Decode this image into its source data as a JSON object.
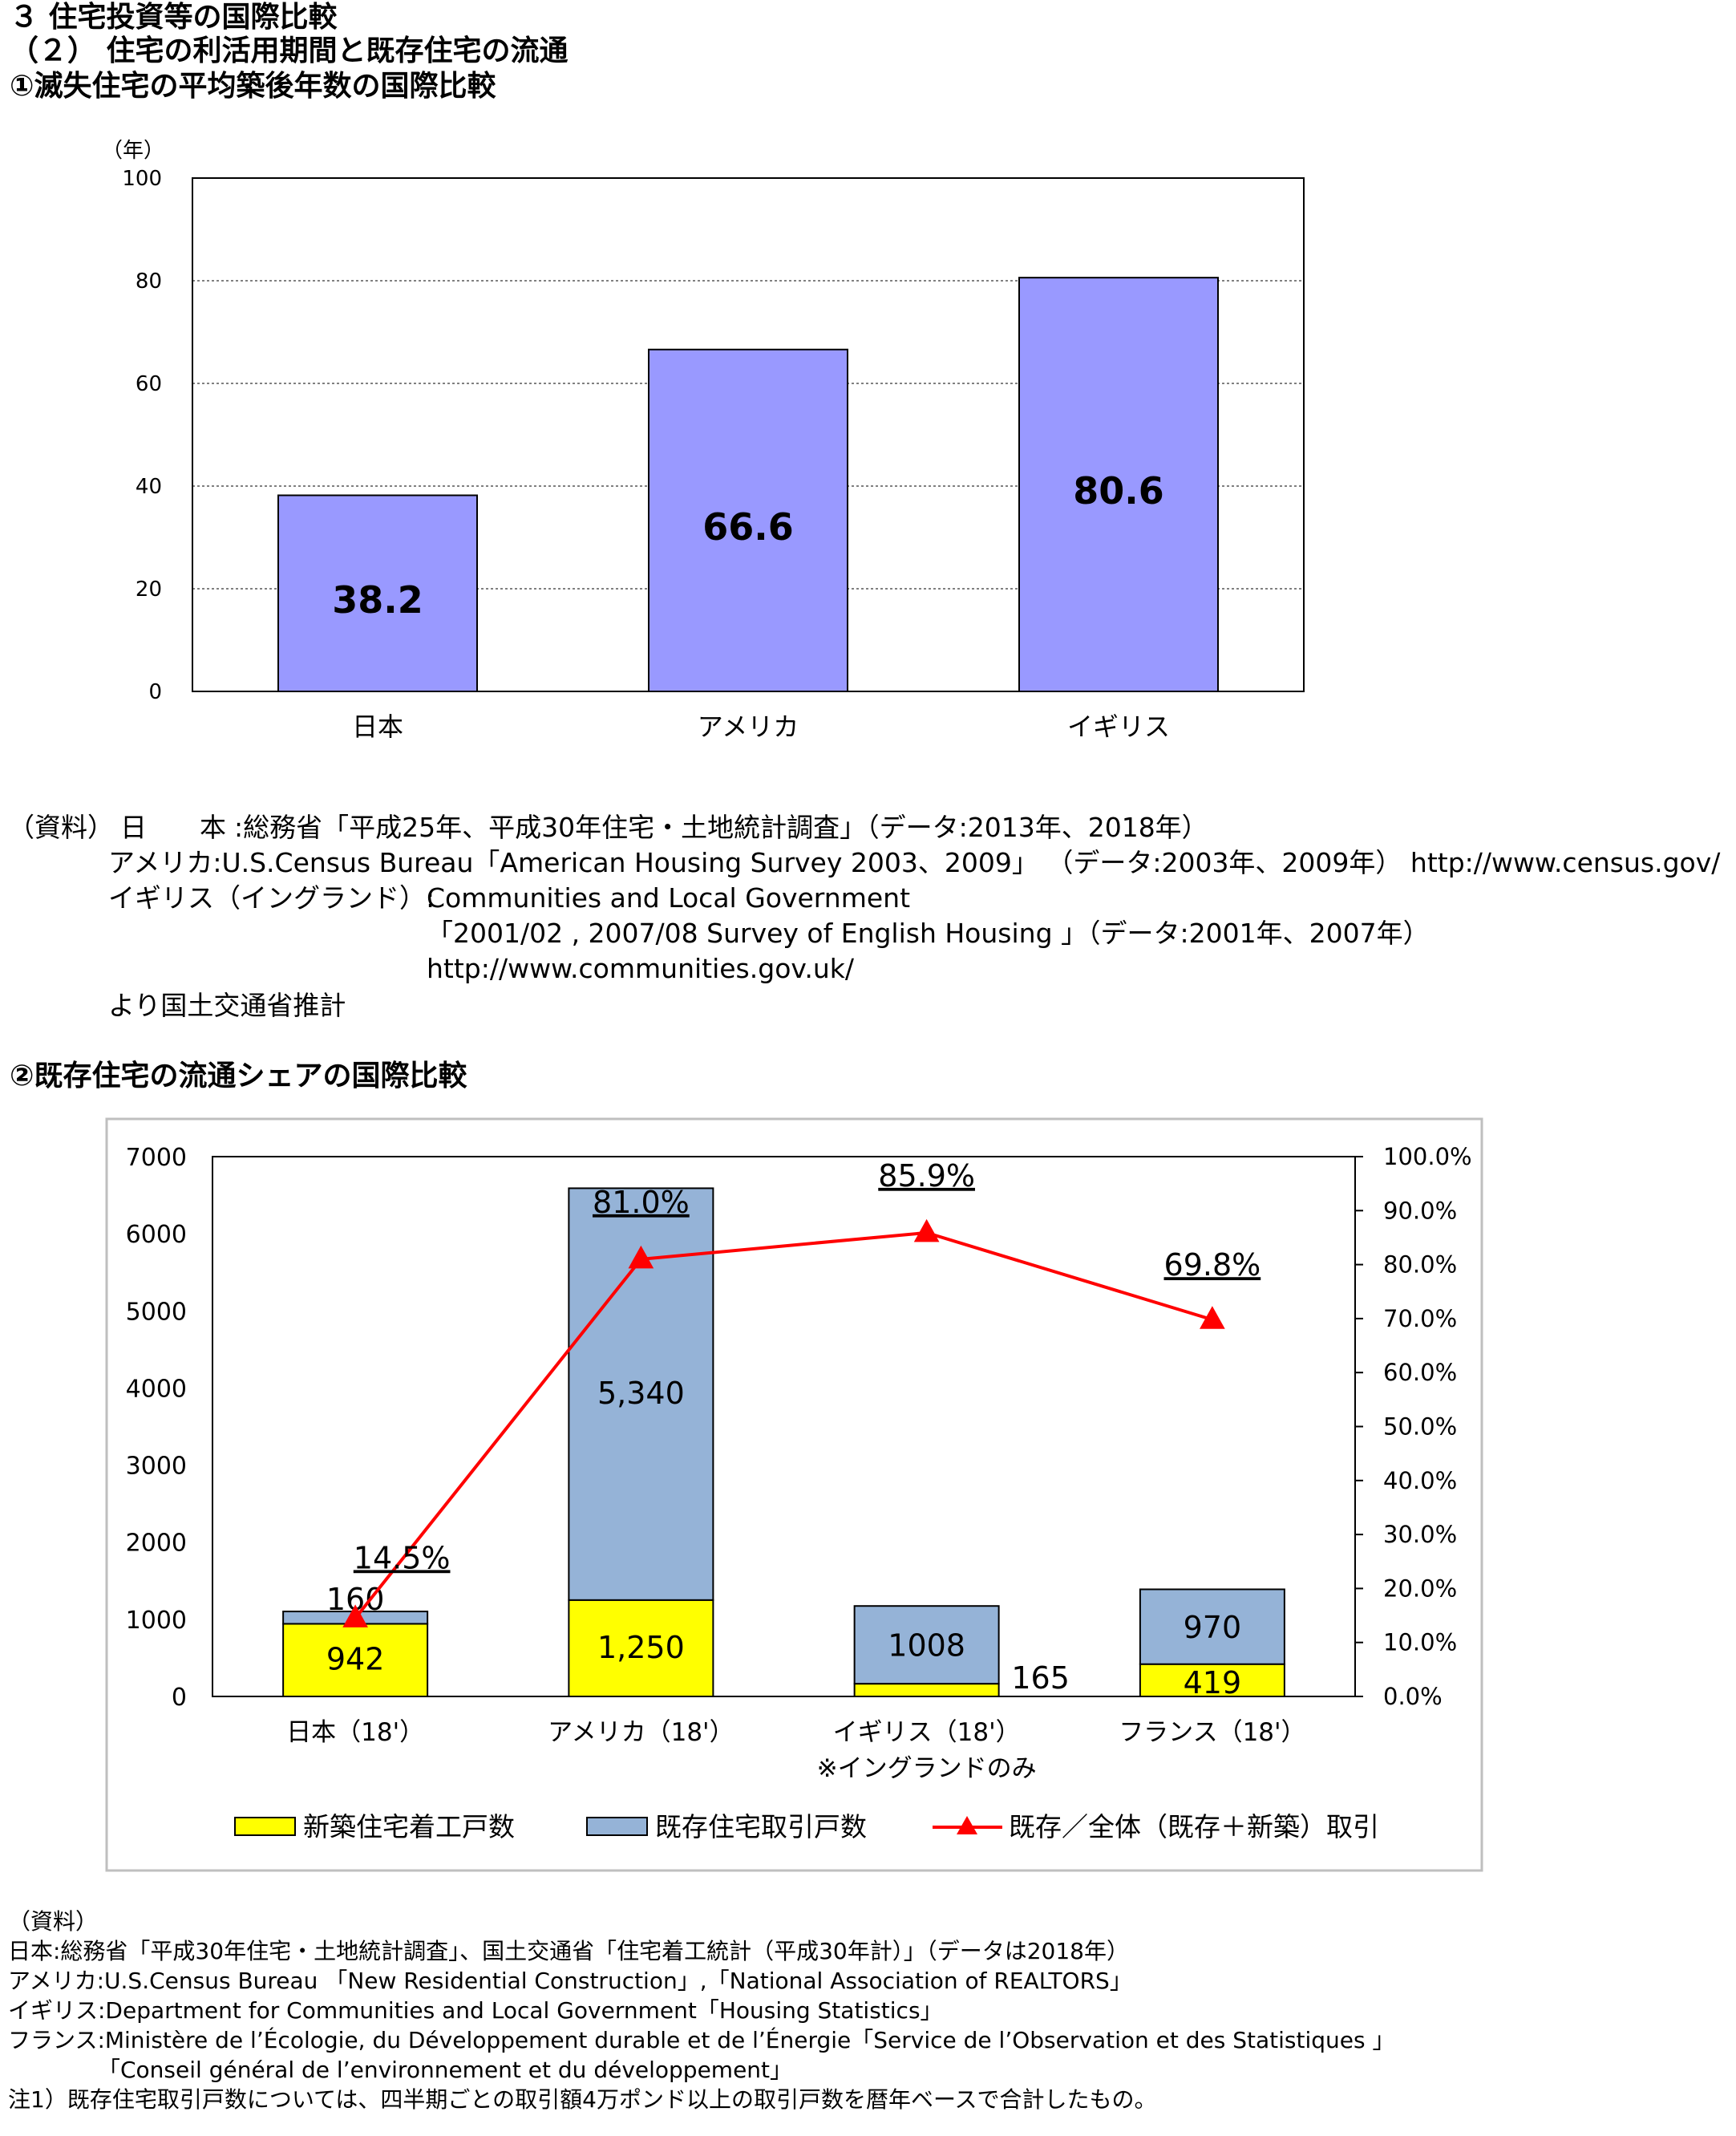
{
  "headings": {
    "section": "３ 住宅投資等の国際比較",
    "subsection": "（２） 住宅の利活用期間と既存住宅の流通",
    "chart1_title": "①滅失住宅の平均築後年数の国際比較",
    "chart2_title": "②既存住宅の流通シェアの国際比較"
  },
  "source1": {
    "label": "（資料）",
    "japan_key": "日　　本",
    "japan_text": ":総務省「平成25年、平成30年住宅・土地統計調査」（データ:2013年、2018年）",
    "usa": "アメリカ:U.S.Census Bureau「American Housing Survey 2003、2009」 （データ:2003年、2009年） http://www.census.gov/",
    "uk_key": "イギリス（イングランド）:",
    "uk_text": "Communities and Local Government",
    "uk_line2": "「2001/02 , 2007/08 Survey of English Housing 」（データ:2001年、2007年）",
    "uk_line3": "http://www.communities.gov.uk/",
    "footer": "より国土交通省推計"
  },
  "source2": {
    "label": "（資料）",
    "japan": "日本:総務省「平成30年住宅・土地統計調査」、国土交通省「住宅着工統計（平成30年計）」（データは2018年）",
    "usa": "アメリカ:U.S.Census Bureau 「New Residential Construction」,「National Association of REALTORS」",
    "uk": "イギリス:Department for Communities and Local Government「Housing Statistics」",
    "france": "フランス:Ministère de l’Écologie, du Développement durable et de l’Énergie「Service de l’Observation et des Statistiques 」",
    "france2": "「Conseil général de l’environnement et du développement」",
    "note": "注1）既存住宅取引戸数については、四半期ごとの取引額4万ポンド以上の取引戸数を暦年ベースで合計したもの。"
  },
  "colors": {
    "bar1": "#9999ff",
    "new_construction": "#ffff00",
    "existing": "#95b3d7",
    "share_line": "#ff0000"
  },
  "chart_data": [
    {
      "type": "bar",
      "title": "①滅失住宅の平均築後年数の国際比較",
      "ylabel": "（年）",
      "categories": [
        "日本",
        "アメリカ",
        "イギリス"
      ],
      "values": [
        38.2,
        66.6,
        80.6
      ],
      "value_labels": [
        "38.2",
        "66.6",
        "80.6"
      ],
      "ylim": [
        0,
        100
      ],
      "yticks": [
        0,
        20,
        40,
        60,
        80,
        100
      ],
      "grid": "dashed horizontal"
    },
    {
      "type": "bar",
      "stacked": true,
      "title": "②既存住宅の流通シェアの国際比較",
      "categories": [
        "日本（18'）",
        "アメリカ（18'）",
        "イギリス（18'）",
        "フランス（18'）"
      ],
      "category_note": {
        "index": 2,
        "text": "※イングランドのみ"
      },
      "series": [
        {
          "name": "新築住宅着工戸数",
          "values": [
            942,
            1250,
            165,
            419
          ],
          "labels": [
            "942",
            "1,250",
            "165",
            "419"
          ]
        },
        {
          "name": "既存住宅取引戸数",
          "values": [
            160,
            5340,
            1008,
            970
          ],
          "labels": [
            "160",
            "5,340",
            "1008",
            "970"
          ]
        }
      ],
      "line_series": {
        "name": "既存／全体（既存＋新築）取引",
        "axis": "right",
        "values": [
          14.5,
          81.0,
          85.9,
          69.8
        ],
        "labels": [
          "14.5%",
          "81.0%",
          "85.9%",
          "69.8%"
        ],
        "marker": "triangle"
      },
      "ylim": [
        0,
        7000
      ],
      "yticks": [
        0,
        1000,
        2000,
        3000,
        4000,
        5000,
        6000,
        7000
      ],
      "y2lim": [
        0,
        100
      ],
      "y2ticks": [
        "0.0%",
        "10.0%",
        "20.0%",
        "30.0%",
        "40.0%",
        "50.0%",
        "60.0%",
        "70.0%",
        "80.0%",
        "90.0%",
        "100.0%"
      ],
      "legend": "bottom"
    }
  ]
}
